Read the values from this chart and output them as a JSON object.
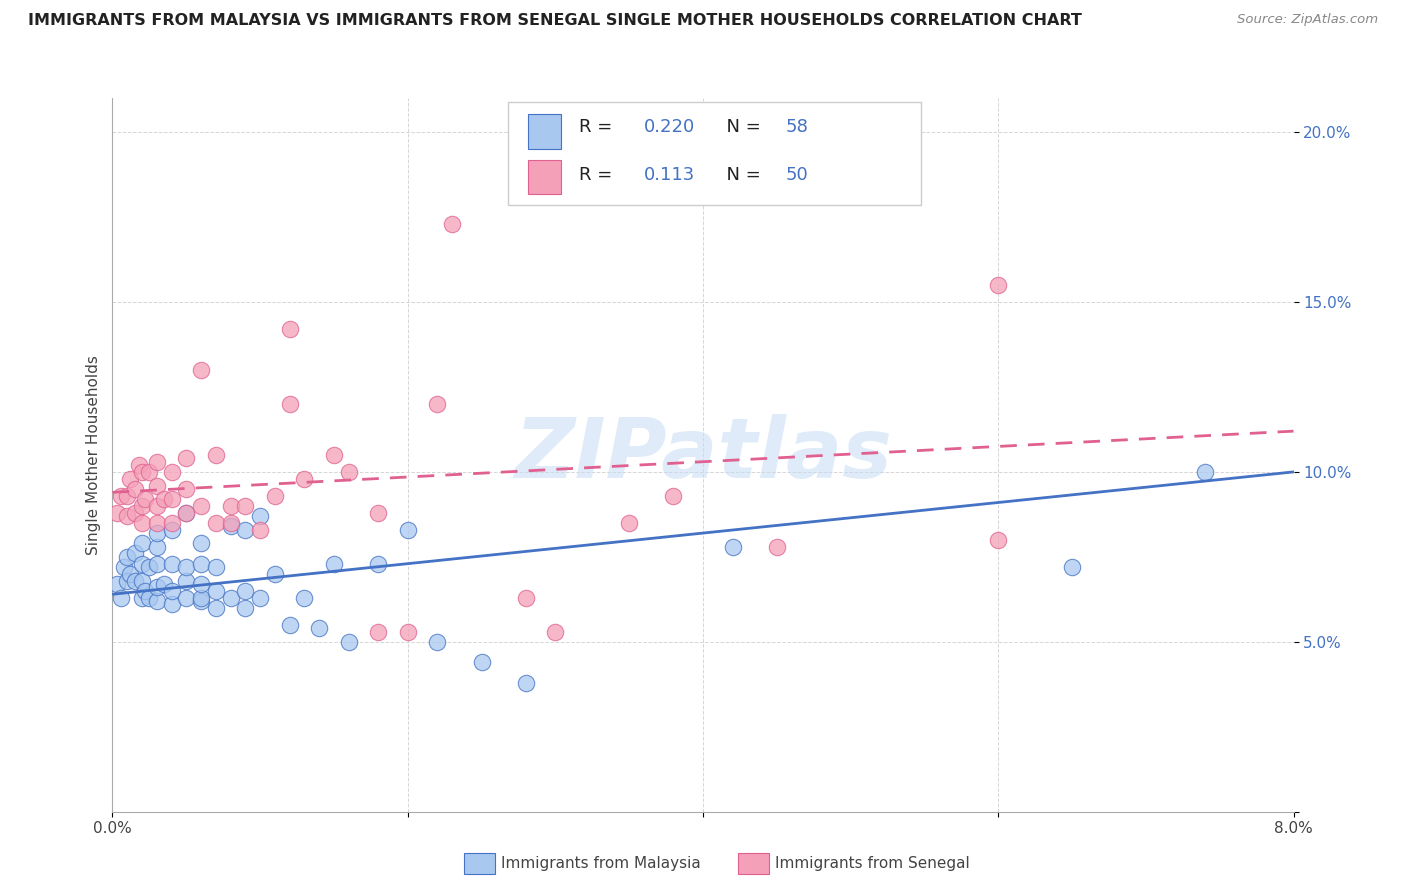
{
  "title": "IMMIGRANTS FROM MALAYSIA VS IMMIGRANTS FROM SENEGAL SINGLE MOTHER HOUSEHOLDS CORRELATION CHART",
  "source": "Source: ZipAtlas.com",
  "ylabel": "Single Mother Households",
  "xlabel_blue": "Immigrants from Malaysia",
  "xlabel_pink": "Immigrants from Senegal",
  "watermark": "ZIPatlas",
  "xlim": [
    0.0,
    0.08
  ],
  "ylim": [
    0.0,
    0.21
  ],
  "x_ticks": [
    0.0,
    0.02,
    0.04,
    0.06,
    0.08
  ],
  "y_ticks": [
    0.0,
    0.05,
    0.1,
    0.15,
    0.2
  ],
  "R_blue": 0.22,
  "N_blue": 58,
  "R_pink": 0.113,
  "N_pink": 50,
  "color_blue": "#A8C8F0",
  "color_pink": "#F4A0B8",
  "color_blue_dark": "#4472C4",
  "color_pink_dark": "#E06090",
  "blue_scatter_x": [
    0.0003,
    0.0006,
    0.0008,
    0.001,
    0.001,
    0.0012,
    0.0015,
    0.0015,
    0.002,
    0.002,
    0.002,
    0.002,
    0.0022,
    0.0025,
    0.0025,
    0.003,
    0.003,
    0.003,
    0.003,
    0.003,
    0.0035,
    0.004,
    0.004,
    0.004,
    0.004,
    0.005,
    0.005,
    0.005,
    0.005,
    0.006,
    0.006,
    0.006,
    0.006,
    0.006,
    0.007,
    0.007,
    0.007,
    0.008,
    0.008,
    0.009,
    0.009,
    0.009,
    0.01,
    0.01,
    0.011,
    0.012,
    0.013,
    0.014,
    0.015,
    0.016,
    0.018,
    0.02,
    0.022,
    0.025,
    0.028,
    0.042,
    0.065,
    0.074
  ],
  "blue_scatter_y": [
    0.067,
    0.063,
    0.072,
    0.068,
    0.075,
    0.07,
    0.068,
    0.076,
    0.063,
    0.068,
    0.073,
    0.079,
    0.065,
    0.063,
    0.072,
    0.062,
    0.066,
    0.073,
    0.078,
    0.082,
    0.067,
    0.061,
    0.065,
    0.073,
    0.083,
    0.063,
    0.068,
    0.072,
    0.088,
    0.062,
    0.063,
    0.067,
    0.073,
    0.079,
    0.06,
    0.065,
    0.072,
    0.063,
    0.084,
    0.06,
    0.065,
    0.083,
    0.063,
    0.087,
    0.07,
    0.055,
    0.063,
    0.054,
    0.073,
    0.05,
    0.073,
    0.083,
    0.05,
    0.044,
    0.038,
    0.078,
    0.072,
    0.1
  ],
  "pink_scatter_x": [
    0.0003,
    0.0006,
    0.001,
    0.001,
    0.0012,
    0.0015,
    0.0015,
    0.0018,
    0.002,
    0.002,
    0.002,
    0.0022,
    0.0025,
    0.003,
    0.003,
    0.003,
    0.003,
    0.0035,
    0.004,
    0.004,
    0.004,
    0.005,
    0.005,
    0.005,
    0.006,
    0.006,
    0.007,
    0.007,
    0.008,
    0.008,
    0.009,
    0.01,
    0.011,
    0.012,
    0.012,
    0.013,
    0.015,
    0.016,
    0.018,
    0.018,
    0.02,
    0.022,
    0.023,
    0.028,
    0.03,
    0.035,
    0.038,
    0.045,
    0.06,
    0.06
  ],
  "pink_scatter_y": [
    0.088,
    0.093,
    0.087,
    0.093,
    0.098,
    0.088,
    0.095,
    0.102,
    0.085,
    0.09,
    0.1,
    0.092,
    0.1,
    0.085,
    0.09,
    0.096,
    0.103,
    0.092,
    0.085,
    0.092,
    0.1,
    0.088,
    0.095,
    0.104,
    0.09,
    0.13,
    0.085,
    0.105,
    0.085,
    0.09,
    0.09,
    0.083,
    0.093,
    0.12,
    0.142,
    0.098,
    0.105,
    0.1,
    0.088,
    0.053,
    0.053,
    0.12,
    0.173,
    0.063,
    0.053,
    0.085,
    0.093,
    0.078,
    0.08,
    0.155
  ],
  "blue_line_x": [
    0.0,
    0.08
  ],
  "blue_line_y": [
    0.064,
    0.1
  ],
  "pink_line_x": [
    0.0,
    0.08
  ],
  "pink_line_y": [
    0.094,
    0.112
  ]
}
